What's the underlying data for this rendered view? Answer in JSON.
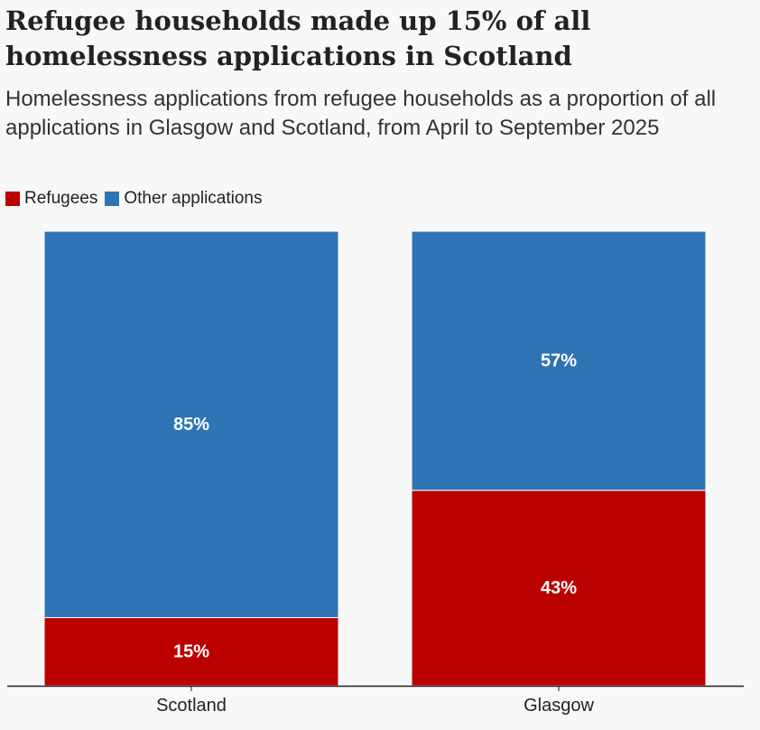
{
  "title": "Refugee households made up 15% of all homelessness applications in Scotland",
  "subtitle": "Homelessness applications from refugee households as a proportion of all applications in Glasgow and Scotland, from April to September 2025",
  "legend": [
    {
      "label": "Refugees",
      "color": "#bb0000"
    },
    {
      "label": "Other applications",
      "color": "#2e74b5"
    }
  ],
  "chart_data": {
    "type": "bar",
    "stacked": true,
    "categories": [
      "Scotland",
      "Glasgow"
    ],
    "series": [
      {
        "name": "Refugees",
        "values": [
          15,
          43
        ],
        "color": "#bb0000",
        "labels": [
          "15%",
          "43%"
        ]
      },
      {
        "name": "Other applications",
        "values": [
          85,
          57
        ],
        "color": "#2e74b5",
        "labels": [
          "85%",
          "57%"
        ]
      }
    ],
    "ylim": [
      0,
      100
    ],
    "unit": "%",
    "grid": false,
    "legend_placement": "top-left"
  }
}
